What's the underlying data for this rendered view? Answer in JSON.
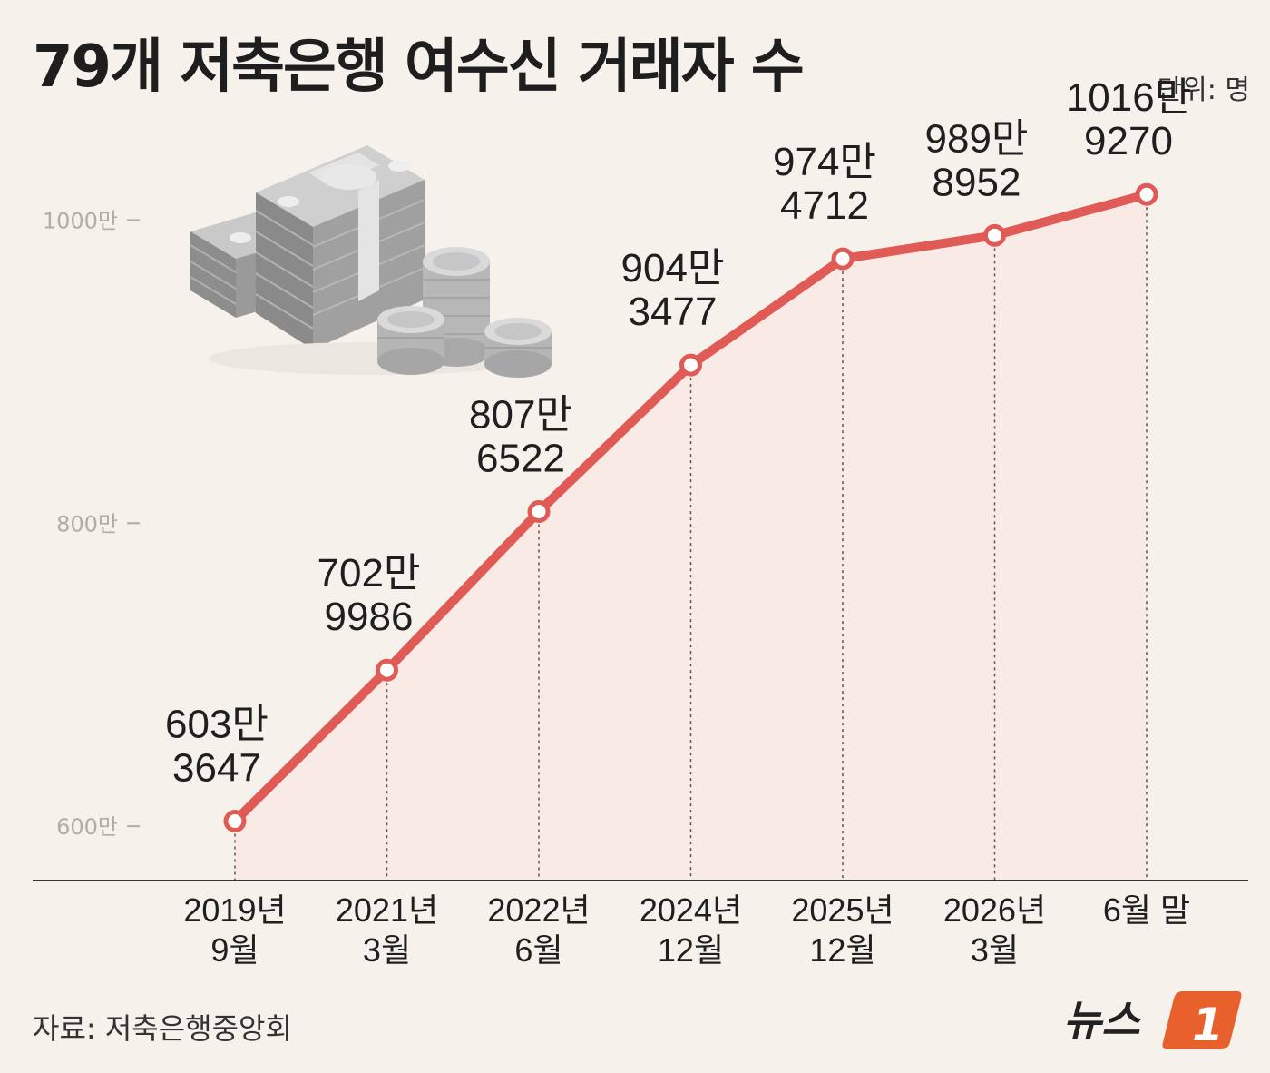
{
  "title": "79개 저축은행 여수신 거래자 수",
  "unit": "단위: 명",
  "source": "자료: 저축은행중앙회",
  "logo": {
    "text": "뉴스",
    "mark": "1"
  },
  "colors": {
    "line": "#e05a56",
    "fill": "#fbe9e4",
    "background": "#f6f1eb",
    "logo_mark": "#e8612c"
  },
  "chart_data": {
    "type": "line",
    "title": "79개 저축은행 여수신 거래자 수",
    "unit": "단위: 명",
    "categories": [
      [
        "2019년",
        "9월"
      ],
      [
        "2021년",
        "3월"
      ],
      [
        "2022년",
        "6월"
      ],
      [
        "2024년",
        "12월"
      ],
      [
        "2025년",
        "12월"
      ],
      [
        "2026년",
        "3월"
      ],
      [
        "6월 말"
      ]
    ],
    "values": [
      6033647,
      7029986,
      8076522,
      9043477,
      9744712,
      9898952,
      10169270
    ],
    "data_labels": [
      [
        "603만",
        "3647"
      ],
      [
        "702만",
        "9986"
      ],
      [
        "807만",
        "6522"
      ],
      [
        "904만",
        "3477"
      ],
      [
        "974만",
        "4712"
      ],
      [
        "989만",
        "8952"
      ],
      [
        "1016만",
        "9270"
      ]
    ],
    "yticks": [
      {
        "value": 6000000,
        "label": "600만"
      },
      {
        "value": 8000000,
        "label": "800만"
      },
      {
        "value": 10000000,
        "label": "1000만"
      }
    ],
    "ylim": [
      5300000,
      10500000
    ],
    "grid": false,
    "legend": "none"
  }
}
